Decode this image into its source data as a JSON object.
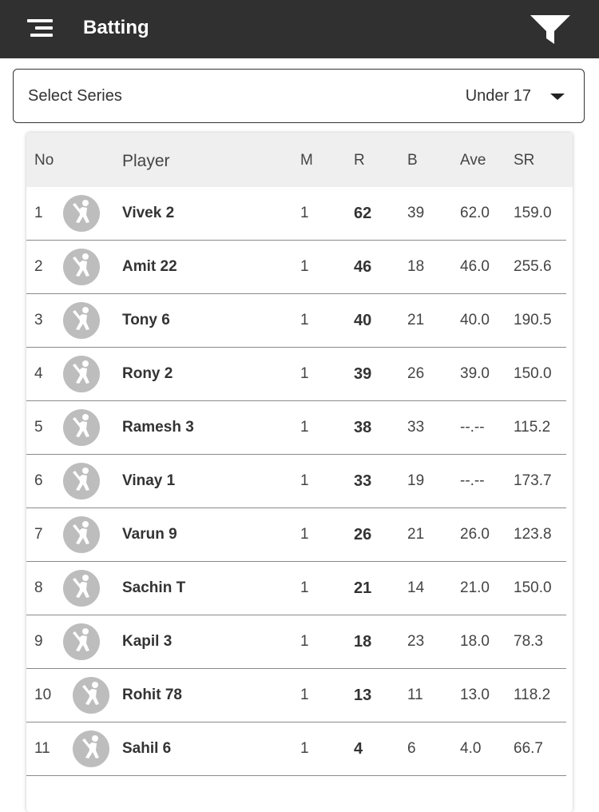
{
  "appbar": {
    "title": "Batting",
    "menu_icon": "menu-icon",
    "filter_icon": "filter-icon"
  },
  "series_select": {
    "label": "Select Series",
    "value": "Under 17"
  },
  "table": {
    "headers": {
      "no": "No",
      "player": "Player",
      "m": "M",
      "r": "R",
      "b": "B",
      "ave": "Ave",
      "sr": "SR"
    },
    "rows": [
      {
        "no": "1",
        "player": "Vivek 2",
        "m": "1",
        "r": "62",
        "b": "39",
        "ave": "62.0",
        "sr": "159.0"
      },
      {
        "no": "2",
        "player": "Amit 22",
        "m": "1",
        "r": "46",
        "b": "18",
        "ave": "46.0",
        "sr": "255.6"
      },
      {
        "no": "3",
        "player": "Tony 6",
        "m": "1",
        "r": "40",
        "b": "21",
        "ave": "40.0",
        "sr": "190.5"
      },
      {
        "no": "4",
        "player": "Rony 2",
        "m": "1",
        "r": "39",
        "b": "26",
        "ave": "39.0",
        "sr": "150.0"
      },
      {
        "no": "5",
        "player": "Ramesh 3",
        "m": "1",
        "r": "38",
        "b": "33",
        "ave": "--.--",
        "sr": "115.2"
      },
      {
        "no": "6",
        "player": "Vinay 1",
        "m": "1",
        "r": "33",
        "b": "19",
        "ave": "--.--",
        "sr": "173.7"
      },
      {
        "no": "7",
        "player": "Varun 9",
        "m": "1",
        "r": "26",
        "b": "21",
        "ave": "26.0",
        "sr": "123.8"
      },
      {
        "no": "8",
        "player": "Sachin T",
        "m": "1",
        "r": "21",
        "b": "14",
        "ave": "21.0",
        "sr": "150.0"
      },
      {
        "no": "9",
        "player": "Kapil 3",
        "m": "1",
        "r": "18",
        "b": "23",
        "ave": "18.0",
        "sr": "78.3"
      },
      {
        "no": "10",
        "player": "Rohit 78",
        "m": "1",
        "r": "13",
        "b": "11",
        "ave": "13.0",
        "sr": "118.2"
      },
      {
        "no": "11",
        "player": "Sahil 6",
        "m": "1",
        "r": "4",
        "b": "6",
        "ave": "4.0",
        "sr": "66.7"
      }
    ],
    "avatar_icon": "batsman-avatar-icon"
  },
  "colors": {
    "appbar": "#303030",
    "header_row": "#efefef",
    "avatar": "#bdbdbd"
  }
}
